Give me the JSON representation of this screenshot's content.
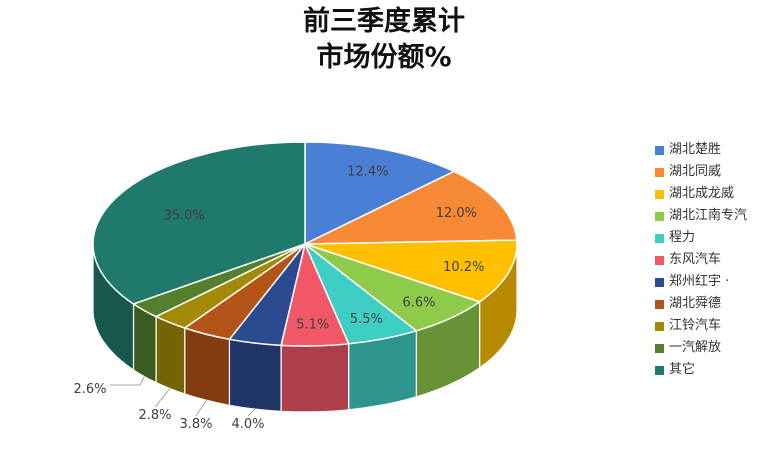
{
  "chart_data": {
    "type": "pie",
    "title_lines": [
      "前三季度累计",
      "市场份额%"
    ],
    "categories": [
      "湖北楚胜",
      "湖北同威",
      "湖北成龙威",
      "湖北江南专汽",
      "程力",
      "东风汽车",
      "郑州红宇 ·",
      "湖北舜德",
      "江铃汽车",
      "一汽解放",
      "其它"
    ],
    "values": [
      12.4,
      12.0,
      10.2,
      6.6,
      5.5,
      5.1,
      4.0,
      3.8,
      2.8,
      2.6,
      35.0
    ],
    "value_labels": [
      "12.4%",
      "12.0%",
      "10.2%",
      "6.6%",
      "5.5%",
      "5.1%",
      "4.0%",
      "3.8%",
      "2.8%",
      "2.6%",
      "35.0%"
    ],
    "colors": [
      "#4a7fd6",
      "#f98a35",
      "#ffc000",
      "#8fcb4a",
      "#3ecfc4",
      "#f05868",
      "#2c4a8f",
      "#b35518",
      "#a38a06",
      "#557f2d",
      "#1f7a6c"
    ],
    "legend_position": "right",
    "style": "3d-pie"
  }
}
